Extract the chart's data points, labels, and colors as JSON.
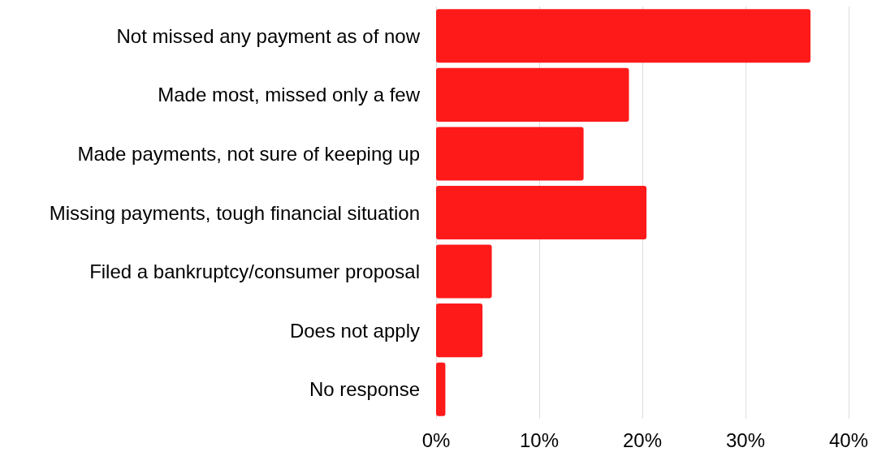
{
  "chart_data": {
    "type": "bar",
    "orientation": "horizontal",
    "categories": [
      "Not missed any payment as of now",
      "Made most, missed only a few",
      "Made payments, not sure of keeping up",
      "Missing payments, tough financial situation",
      "Filed a bankruptcy/consumer proposal",
      "Does not apply",
      "No response"
    ],
    "values": [
      36.3,
      18.7,
      14.3,
      20.4,
      5.4,
      4.5,
      0.9
    ],
    "color": "#ff1a1a",
    "xlim": [
      0,
      40
    ],
    "xticks": [
      {
        "value": 0,
        "label": "0%"
      },
      {
        "value": 10,
        "label": "10%"
      },
      {
        "value": 20,
        "label": "20%"
      },
      {
        "value": 30,
        "label": "30%"
      },
      {
        "value": 40,
        "label": "40%"
      }
    ],
    "grid": "x"
  }
}
